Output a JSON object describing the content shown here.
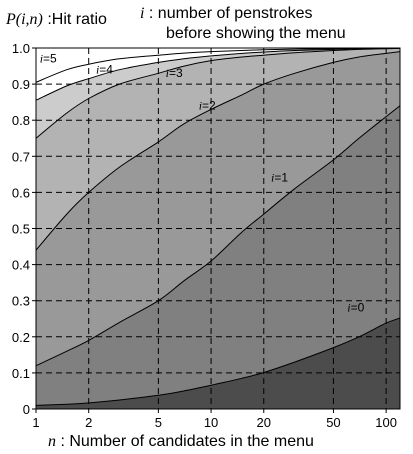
{
  "chart_data": {
    "type": "area",
    "title_lines": [
      {
        "prefix": "P(i,n)",
        "suffix": " :Hit ratio"
      },
      {
        "prefix": "i",
        "suffix": " : number of penstrokes"
      }
    ],
    "title_line3": "before showing the menu",
    "xlabel": {
      "prefix": "n",
      "suffix": " : Number of candidates in the menu"
    },
    "x_scale": "log",
    "x_ticks": [
      1,
      2,
      5,
      10,
      20,
      50,
      100
    ],
    "x_tick_labels": [
      "1",
      "2",
      "5",
      "10",
      "20",
      "50",
      "100"
    ],
    "xlim": [
      1,
      120
    ],
    "ylim": [
      0,
      1.0
    ],
    "y_ticks": [
      0,
      0.1,
      0.2,
      0.3,
      0.4,
      0.5,
      0.6,
      0.7,
      0.8,
      0.9,
      1.0
    ],
    "y_tick_labels": [
      "0",
      "0.1",
      "0.2",
      "0.3",
      "0.4",
      "0.5",
      "0.6",
      "0.7",
      "0.8",
      "0.9",
      "1.0"
    ],
    "grid": true,
    "x": [
      1,
      1.5,
      2,
      3,
      5,
      7,
      10,
      15,
      20,
      30,
      50,
      70,
      100,
      120
    ],
    "series": [
      {
        "name": "i=0",
        "values": [
          0.01,
          0.013,
          0.017,
          0.025,
          0.038,
          0.05,
          0.066,
          0.085,
          0.101,
          0.13,
          0.17,
          0.2,
          0.238,
          0.252
        ]
      },
      {
        "name": "i=1",
        "values": [
          0.12,
          0.16,
          0.19,
          0.24,
          0.3,
          0.355,
          0.41,
          0.49,
          0.54,
          0.61,
          0.69,
          0.75,
          0.81,
          0.84
        ]
      },
      {
        "name": "i=2",
        "values": [
          0.44,
          0.54,
          0.6,
          0.67,
          0.74,
          0.79,
          0.83,
          0.87,
          0.9,
          0.93,
          0.96,
          0.975,
          0.985,
          0.99
        ]
      },
      {
        "name": "i=3",
        "values": [
          0.75,
          0.82,
          0.86,
          0.9,
          0.93,
          0.95,
          0.965,
          0.975,
          0.98,
          0.987,
          0.993,
          0.996,
          0.998,
          0.999
        ]
      },
      {
        "name": "i=4",
        "values": [
          0.855,
          0.895,
          0.915,
          0.94,
          0.96,
          0.97,
          0.978,
          0.985,
          0.989,
          0.993,
          0.996,
          0.998,
          0.999,
          0.999
        ]
      },
      {
        "name": "i=5",
        "values": [
          0.905,
          0.94,
          0.955,
          0.97,
          0.98,
          0.986,
          0.99,
          0.993,
          0.995,
          0.997,
          0.998,
          0.999,
          0.999,
          1.0
        ]
      }
    ],
    "series_labels": [
      {
        "prefix": "i",
        "suffix": "=0",
        "x": 60,
        "y": 0.27
      },
      {
        "prefix": "i",
        "suffix": "=1",
        "x": 22,
        "y": 0.63
      },
      {
        "prefix": "i",
        "suffix": "=2",
        "x": 8.5,
        "y": 0.83
      },
      {
        "prefix": "i",
        "suffix": "=3",
        "x": 5.5,
        "y": 0.92
      },
      {
        "prefix": "i",
        "suffix": "=4",
        "x": 2.2,
        "y": 0.93
      },
      {
        "prefix": "i",
        "suffix": "=5",
        "x": 1.05,
        "y": 0.96
      }
    ],
    "band_colors": [
      "#4c4c4c",
      "#666666",
      "#808080",
      "#999999",
      "#b3b3b3",
      "#cccccc",
      "#ffffff"
    ]
  }
}
